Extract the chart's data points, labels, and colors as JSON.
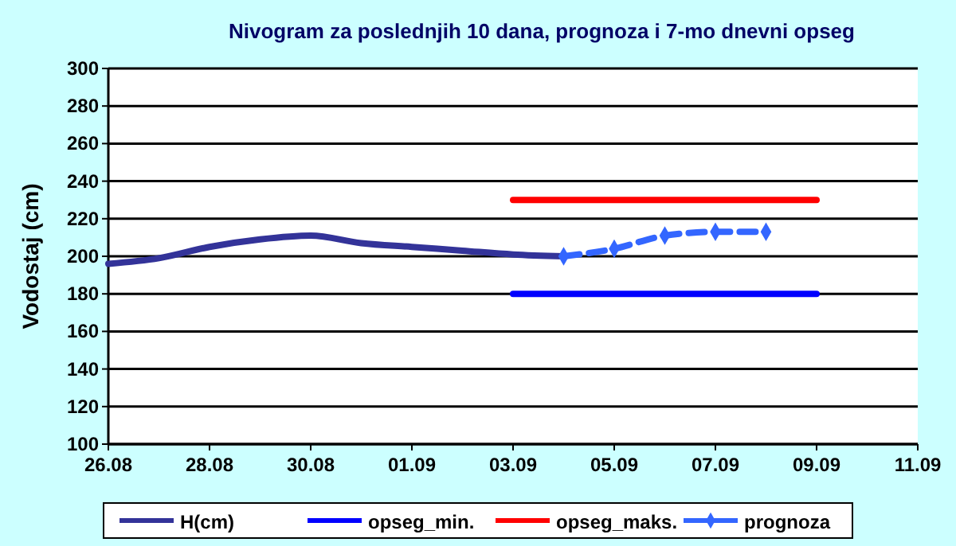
{
  "chart_data": {
    "type": "line",
    "title": "Nivogram za poslednjih 10 dana, prognoza i 7-mo dnevni opseg",
    "ylabel": "Vodostaj (cm)",
    "xlim": [
      "--08-26",
      "--09-11"
    ],
    "xticks": [
      {
        "value": "--08-26",
        "label": "26.08"
      },
      {
        "value": "--08-28",
        "label": "28.08"
      },
      {
        "value": "--08-30",
        "label": "30.08"
      },
      {
        "value": "--09-01",
        "label": "01.09"
      },
      {
        "value": "--09-03",
        "label": "03.09"
      },
      {
        "value": "--09-05",
        "label": "05.09"
      },
      {
        "value": "--09-07",
        "label": "07.09"
      },
      {
        "value": "--09-09",
        "label": "09.09"
      },
      {
        "value": "--09-11",
        "label": "11.09"
      }
    ],
    "ylim": [
      100,
      300
    ],
    "yticks": [
      100,
      120,
      140,
      160,
      180,
      200,
      220,
      240,
      260,
      280,
      300
    ],
    "grid": "y",
    "legend": "bottom",
    "series": [
      {
        "name": "H(cm)",
        "color": "#333399",
        "line_style": "solid",
        "marker": "none",
        "x": [
          "--08-26",
          "--08-27",
          "--08-28",
          "--08-29",
          "--08-30",
          "--08-31",
          "--09-01",
          "--09-02",
          "--09-03",
          "--09-04"
        ],
        "values": [
          196,
          199,
          205,
          209,
          211,
          207,
          205,
          203,
          201,
          200
        ]
      },
      {
        "name": "opseg_min.",
        "color": "#0000ff",
        "line_style": "solid",
        "marker": "none",
        "x": [
          "--09-03",
          "--09-09"
        ],
        "values": [
          180,
          180
        ]
      },
      {
        "name": "opseg_maks.",
        "color": "#ff0000",
        "line_style": "solid",
        "marker": "none",
        "x": [
          "--09-03",
          "--09-09"
        ],
        "values": [
          230,
          230
        ]
      },
      {
        "name": "prognoza",
        "color": "#3366ff",
        "line_style": "dashed",
        "marker": "diamond",
        "x": [
          "--09-04",
          "--09-05",
          "--09-06",
          "--09-07",
          "--09-08"
        ],
        "values": [
          200,
          204,
          211,
          213,
          213
        ]
      }
    ]
  }
}
